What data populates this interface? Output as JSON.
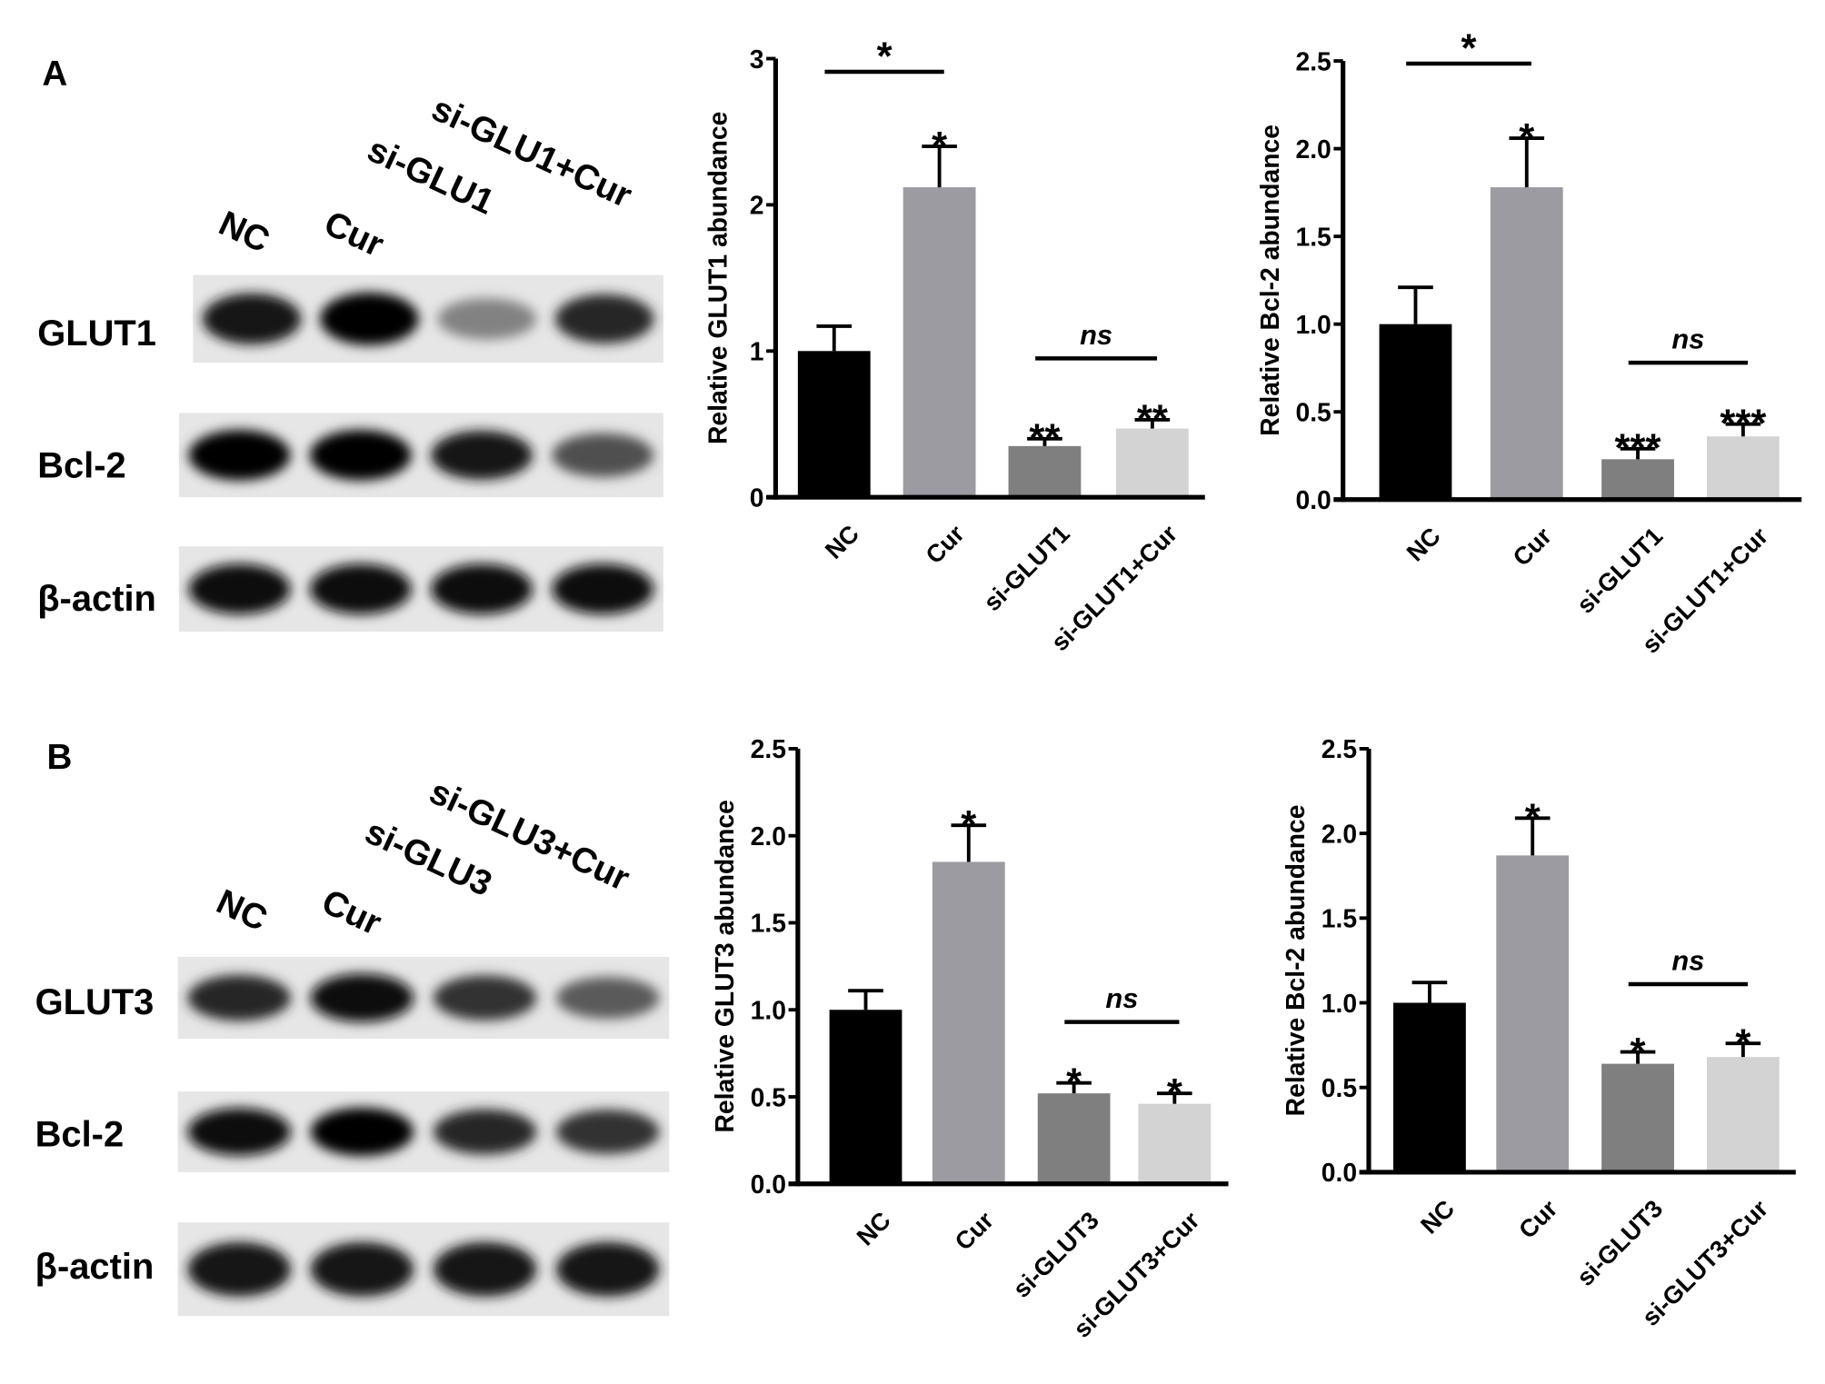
{
  "panels": [
    {
      "letter": "A",
      "lanes": [
        "NC",
        "Cur",
        "si-GLU1",
        "si-GLU1+Cur"
      ],
      "blots": [
        {
          "label": "GLUT1",
          "band_intensity": [
            0.9,
            1.0,
            0.35,
            0.8
          ]
        },
        {
          "label": "Bcl-2",
          "band_intensity": [
            1.0,
            1.0,
            0.9,
            0.6
          ]
        },
        {
          "label": "β-actin",
          "band_intensity": [
            0.95,
            0.95,
            0.95,
            0.95
          ]
        }
      ]
    },
    {
      "letter": "B",
      "lanes": [
        "NC",
        "Cur",
        "si-GLU3",
        "si-GLU3+Cur"
      ],
      "blots": [
        {
          "label": "GLUT3",
          "band_intensity": [
            0.8,
            0.95,
            0.75,
            0.55
          ]
        },
        {
          "label": "Bcl-2",
          "band_intensity": [
            0.95,
            1.0,
            0.8,
            0.75
          ]
        },
        {
          "label": "β-actin",
          "band_intensity": [
            0.9,
            0.9,
            0.9,
            0.9
          ]
        }
      ]
    }
  ],
  "colors": {
    "NC": "#000000",
    "Cur": "#9b9ba1",
    "si": "#7f7f7f",
    "si_cur": "#d3d3d3"
  },
  "chart_data": [
    {
      "type": "bar",
      "ylabel": "Relative  GLUT1 abundance",
      "ylim": [
        0,
        3
      ],
      "ticks": [
        "0",
        "1",
        "2",
        "3"
      ],
      "tick_values": [
        0,
        1,
        2,
        3
      ],
      "categories": [
        "NC",
        "Cur",
        "si-GLUT1",
        "si-GLUT1+Cur"
      ],
      "values": [
        1.0,
        2.12,
        0.35,
        0.47
      ],
      "error_upper": [
        1.17,
        2.4,
        0.4,
        0.53
      ],
      "bar_labels": [
        "",
        "*",
        "**",
        "**"
      ],
      "brackets": [
        {
          "from": 0,
          "to": 1,
          "label": "*"
        },
        {
          "from": 2,
          "to": 3,
          "label": "ns"
        }
      ]
    },
    {
      "type": "bar",
      "ylabel": "Relative  Bcl-2 abundance",
      "ylim": [
        0,
        2.5
      ],
      "ticks": [
        "0.0",
        "0.5",
        "1.0",
        "1.5",
        "2.0",
        "2.5"
      ],
      "tick_values": [
        0,
        0.5,
        1,
        1.5,
        2,
        2.5
      ],
      "categories": [
        "NC",
        "Cur",
        "si-GLUT1",
        "si-GLUT1+Cur"
      ],
      "values": [
        1.0,
        1.78,
        0.23,
        0.36
      ],
      "error_upper": [
        1.21,
        2.06,
        0.29,
        0.43
      ],
      "bar_labels": [
        "",
        "*",
        "***",
        "***"
      ],
      "brackets": [
        {
          "from": 0,
          "to": 1,
          "label": "*"
        },
        {
          "from": 2,
          "to": 3,
          "label": "ns"
        }
      ]
    },
    {
      "type": "bar",
      "ylabel": "Relative  GLUT3 abundance",
      "ylim": [
        0,
        2.5
      ],
      "ticks": [
        "0.0",
        "0.5",
        "1.0",
        "1.5",
        "2.0",
        "2.5"
      ],
      "tick_values": [
        0,
        0.5,
        1,
        1.5,
        2,
        2.5
      ],
      "categories": [
        "NC",
        "Cur",
        "si-GLUT3",
        "si-GLUT3+Cur"
      ],
      "values": [
        1.0,
        1.85,
        0.52,
        0.46
      ],
      "error_upper": [
        1.11,
        2.06,
        0.58,
        0.52
      ],
      "bar_labels": [
        "",
        "*",
        "*",
        "*"
      ],
      "brackets": [
        {
          "from": 2,
          "to": 3,
          "label": "ns"
        }
      ]
    },
    {
      "type": "bar",
      "ylabel": "Relative  Bcl-2 abundance",
      "ylim": [
        0,
        2.5
      ],
      "ticks": [
        "0.0",
        "0.5",
        "1.0",
        "1.5",
        "2.0",
        "2.5"
      ],
      "tick_values": [
        0,
        0.5,
        1,
        1.5,
        2,
        2.5
      ],
      "categories": [
        "NC",
        "Cur",
        "si-GLUT3",
        "si-GLUT3+Cur"
      ],
      "values": [
        1.0,
        1.87,
        0.64,
        0.68
      ],
      "error_upper": [
        1.12,
        2.09,
        0.71,
        0.76
      ],
      "bar_labels": [
        "",
        "*",
        "*",
        "*"
      ],
      "brackets": [
        {
          "from": 2,
          "to": 3,
          "label": "ns"
        }
      ]
    }
  ]
}
